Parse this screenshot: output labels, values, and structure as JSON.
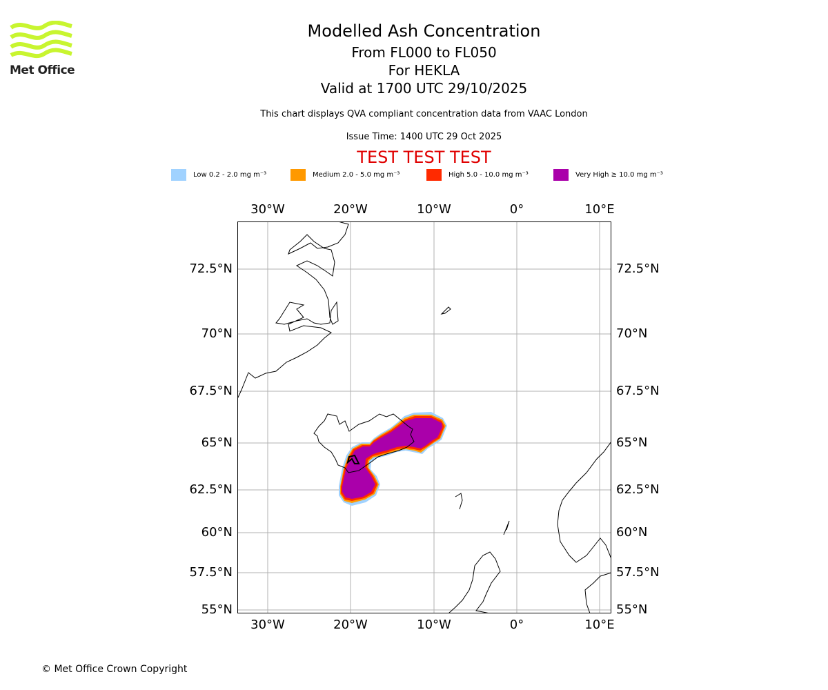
{
  "logo": {
    "text": "Met Office",
    "color": "#c8f530"
  },
  "header": {
    "title": "Modelled Ash Concentration",
    "levels": "From FL000 to FL050",
    "volcano": "For HEKLA",
    "valid": "Valid at 1700 UTC 29/10/2025",
    "description": "This chart displays QVA compliant concentration data from VAAC London",
    "issue_time": "Issue Time: 1400 UTC 29 Oct 2025",
    "test_banner": "TEST TEST TEST"
  },
  "legend": [
    {
      "label": "Low 0.2 - 2.0 mg m⁻³",
      "color": "#a0d2ff"
    },
    {
      "label": "Medium 2.0 - 5.0 mg m⁻³",
      "color": "#ff9900"
    },
    {
      "label": "High 5.0 - 10.0 mg m⁻³",
      "color": "#ff2a00"
    },
    {
      "label": "Very High ≥ 10.0 mg m⁻³",
      "color": "#aa00aa"
    }
  ],
  "map": {
    "lon_labels": [
      "30°W",
      "20°W",
      "10°W",
      "0°",
      "10°E"
    ],
    "lat_labels": [
      "72.5°N",
      "70°N",
      "67.5°N",
      "65°N",
      "62.5°N",
      "60°N",
      "57.5°N",
      "55°N"
    ]
  },
  "footer": {
    "copyright": "© Met Office Crown Copyright"
  }
}
